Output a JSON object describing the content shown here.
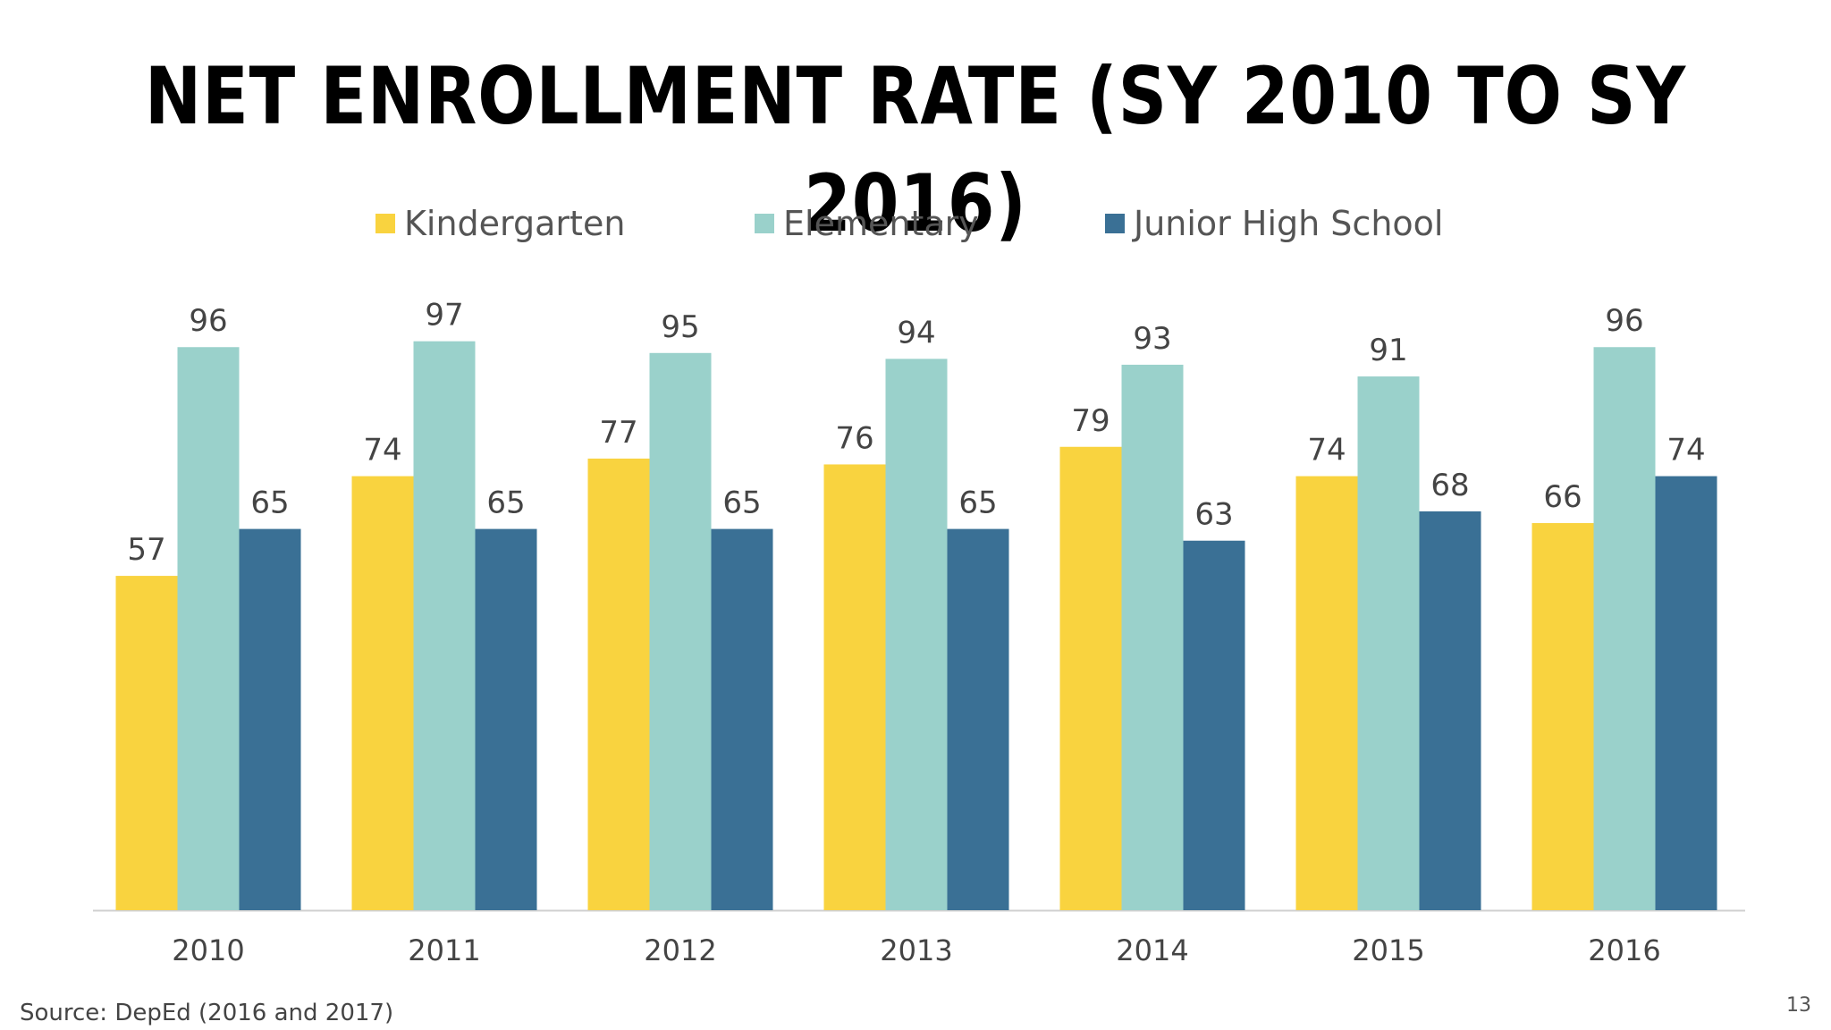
{
  "slide": {
    "source": "Source: DepEd (2016 and 2017)",
    "page_number": "13"
  },
  "chart_data": {
    "type": "bar",
    "title": "NET ENROLLMENT RATE (SY 2010 TO SY 2016)",
    "categories": [
      "2010",
      "2011",
      "2012",
      "2013",
      "2014",
      "2015",
      "2016"
    ],
    "series": [
      {
        "name": "Kindergarten",
        "color": "#F9D33F",
        "values": [
          57,
          74,
          77,
          76,
          79,
          74,
          66
        ]
      },
      {
        "name": "Elementary",
        "color": "#9AD1CB",
        "values": [
          96,
          97,
          95,
          94,
          93,
          91,
          96
        ]
      },
      {
        "name": "Junior High School",
        "color": "#3A7095",
        "values": [
          65,
          65,
          65,
          65,
          63,
          68,
          74
        ]
      }
    ],
    "ylim": [
      0,
      100
    ],
    "grid": false,
    "legend": "top-center",
    "data_labels": true,
    "xlabel": "",
    "ylabel": ""
  }
}
